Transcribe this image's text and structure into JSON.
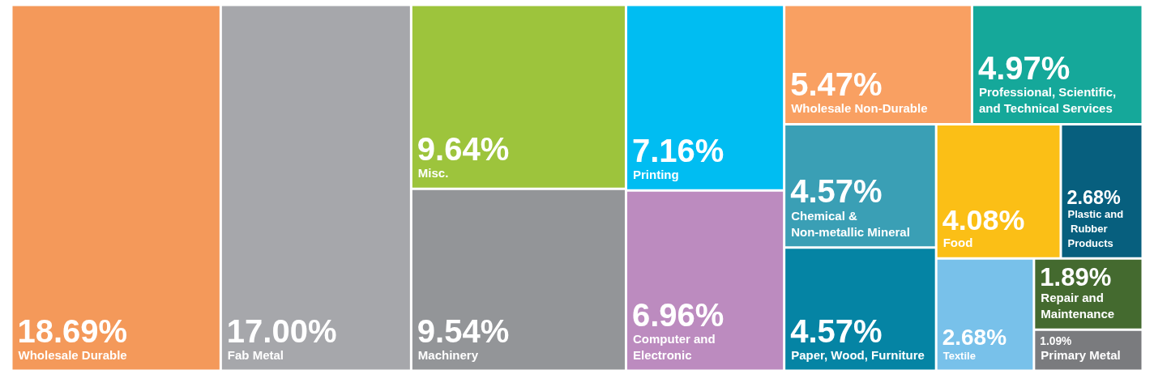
{
  "chart_data": {
    "type": "other",
    "categories": [
      "Wholesale Durable",
      "Fab Metal",
      "Misc.",
      "Machinery",
      "Printing",
      "Computer and Electronic",
      "Wholesale Non-Durable",
      "Professional, Scientific, and Technical Services",
      "Chemical & Non-metallic Mineral",
      "Paper, Wood, Furniture",
      "Food",
      "Plastic and Rubber Products",
      "Textile",
      "Repair and Maintenance",
      "Primary Metal"
    ],
    "values": [
      18.69,
      17.0,
      9.64,
      9.54,
      7.16,
      6.96,
      5.47,
      4.97,
      4.57,
      4.57,
      4.08,
      2.68,
      2.68,
      1.89,
      1.09
    ],
    "value_labels": [
      "18.69%",
      "17.00%",
      "9.64%",
      "9.54%",
      "7.16%",
      "6.96%",
      "5.47%",
      "4.97%",
      "4.57%",
      "4.57%",
      "4.08%",
      "2.68%",
      "2.68%",
      "1.89%",
      "1.09%"
    ],
    "colors": [
      "#f4995a",
      "#a6a7ab",
      "#9dc43c",
      "#939598",
      "#00bdf2",
      "#bc8bbf",
      "#f9a062",
      "#15a89a",
      "#3a9fb5",
      "#0584a4",
      "#fbbf16",
      "#075f7e",
      "#78c1ea",
      "#446a2f",
      "#7a7b7e"
    ]
  }
}
